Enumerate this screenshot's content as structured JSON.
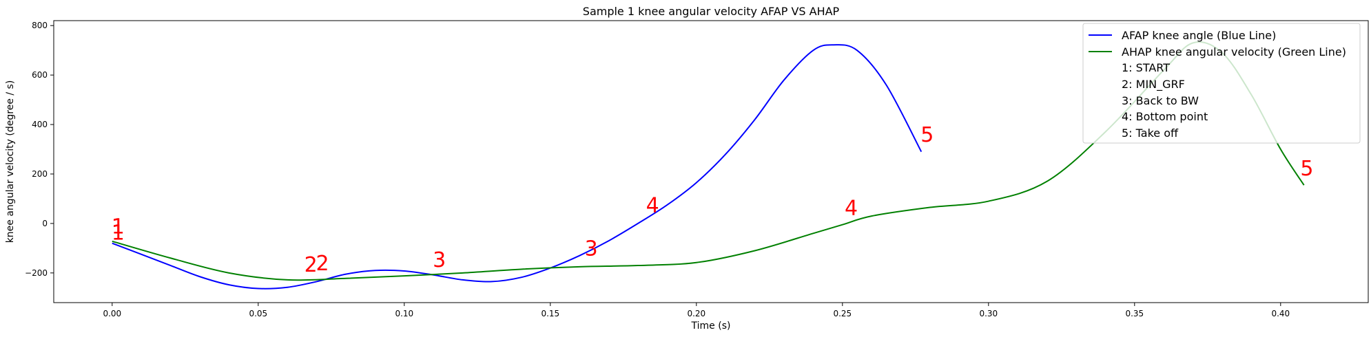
{
  "chart_data": {
    "type": "line",
    "title": "Sample 1 knee angular velocity AFAP VS AHAP",
    "xlabel": "Time (s)",
    "ylabel": "knee angular velocity (degree / s)",
    "xlim": [
      -0.02,
      0.43
    ],
    "ylim": [
      -320,
      820
    ],
    "xticks": [
      0.0,
      0.05,
      0.1,
      0.15,
      0.2,
      0.25,
      0.3,
      0.35,
      0.4
    ],
    "xtick_labels": [
      "0.00",
      "0.05",
      "0.10",
      "0.15",
      "0.20",
      "0.25",
      "0.30",
      "0.35",
      "0.40"
    ],
    "yticks": [
      -200,
      0,
      200,
      400,
      600,
      800
    ],
    "ytick_labels": [
      "−200",
      "0",
      "200",
      "400",
      "600",
      "800"
    ],
    "grid": false,
    "legend_placement": "top-right",
    "series": [
      {
        "name": "AFAP knee angle (Blue Line)",
        "color": "#0000ff",
        "x": [
          0.0,
          0.01,
          0.02,
          0.03,
          0.04,
          0.05,
          0.06,
          0.07,
          0.08,
          0.09,
          0.1,
          0.11,
          0.12,
          0.13,
          0.14,
          0.15,
          0.16,
          0.17,
          0.18,
          0.19,
          0.2,
          0.21,
          0.22,
          0.23,
          0.24,
          0.247,
          0.255,
          0.265,
          0.277
        ],
        "y": [
          -80,
          -125,
          -170,
          -215,
          -248,
          -263,
          -258,
          -235,
          -205,
          -190,
          -192,
          -208,
          -228,
          -235,
          -218,
          -180,
          -130,
          -70,
          0,
          75,
          165,
          280,
          420,
          580,
          700,
          722,
          700,
          560,
          290
        ]
      },
      {
        "name": "AHAP knee angular velocity (Green Line)",
        "color": "#008000",
        "x": [
          0.0,
          0.02,
          0.04,
          0.06,
          0.08,
          0.1,
          0.12,
          0.14,
          0.16,
          0.18,
          0.2,
          0.22,
          0.24,
          0.25,
          0.26,
          0.28,
          0.3,
          0.32,
          0.34,
          0.36,
          0.37,
          0.38,
          0.39,
          0.4,
          0.408
        ],
        "y": [
          -72,
          -140,
          -200,
          -228,
          -222,
          -212,
          -200,
          -185,
          -175,
          -170,
          -158,
          -110,
          -40,
          -5,
          30,
          65,
          90,
          170,
          370,
          620,
          730,
          690,
          520,
          300,
          155
        ]
      }
    ],
    "markers": [
      {
        "label": "1",
        "x": 0.002,
        "y": -40
      },
      {
        "label": "1",
        "x": 0.002,
        "y": -65
      },
      {
        "label": "2",
        "x": 0.068,
        "y": -195
      },
      {
        "label": "2",
        "x": 0.072,
        "y": -190
      },
      {
        "label": "3",
        "x": 0.112,
        "y": -175
      },
      {
        "label": "3",
        "x": 0.164,
        "y": -130
      },
      {
        "label": "4",
        "x": 0.185,
        "y": 45
      },
      {
        "label": "4",
        "x": 0.253,
        "y": 35
      },
      {
        "label": "5",
        "x": 0.279,
        "y": 330
      },
      {
        "label": "5",
        "x": 0.409,
        "y": 195
      }
    ],
    "legend_extra": [
      "1: START",
      "2: MIN_GRF",
      "3: Back to BW",
      "4: Bottom point",
      "5: Take off"
    ]
  }
}
